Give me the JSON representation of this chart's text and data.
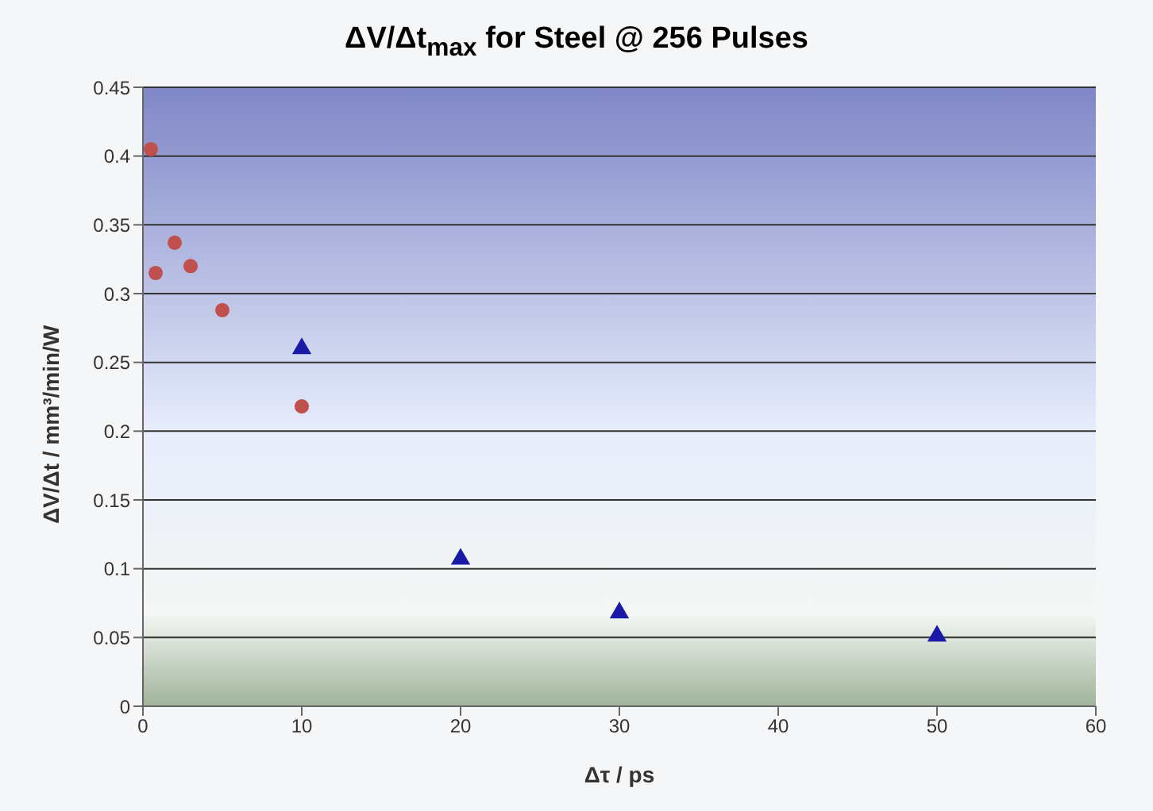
{
  "chart_data": {
    "type": "scatter",
    "title": "ΔV/Δt$_{max}$ for Steel  @ 256 Pulses",
    "xlabel": "Δτ / ps",
    "ylabel": "ΔV/Δt / mm³/min/W",
    "xlim": [
      0,
      60
    ],
    "xticks": [
      0,
      10,
      20,
      30,
      40,
      50,
      60
    ],
    "ylim": [
      0,
      0.45
    ],
    "yticks": [
      0,
      0.05,
      0.1,
      0.15,
      0.2,
      0.25,
      0.3,
      0.35,
      0.4,
      0.45
    ],
    "grid": "y",
    "series": [
      {
        "color": "#c0504d",
        "marker": "circle",
        "x": [
          0.5,
          0.8,
          2,
          3,
          5,
          10
        ],
        "values": [
          0.405,
          0.315,
          0.337,
          0.32,
          0.288,
          0.218
        ]
      },
      {
        "color": "#1a1aa6",
        "marker": "triangle",
        "x": [
          10,
          20,
          30,
          50
        ],
        "values": [
          0.26,
          0.107,
          0.068,
          0.051
        ]
      }
    ]
  }
}
